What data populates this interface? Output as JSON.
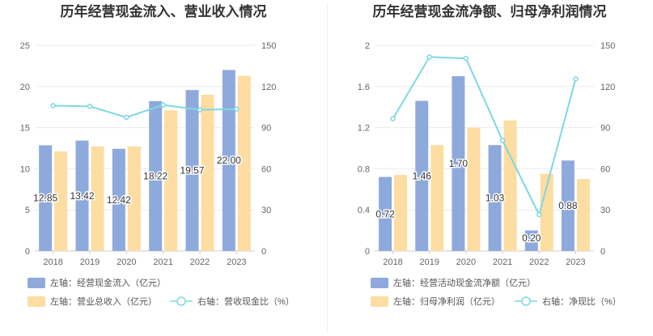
{
  "chart_data": [
    {
      "type": "bar",
      "title": "历年经营现金流入、营业收入情况",
      "categories": [
        "2018",
        "2019",
        "2020",
        "2021",
        "2022",
        "2023"
      ],
      "left_axis": {
        "ylim": [
          0,
          25
        ],
        "ticks": [
          "0",
          "5",
          "10",
          "15",
          "20",
          "25"
        ]
      },
      "right_axis": {
        "ylim": [
          0,
          150
        ],
        "ticks": [
          "0",
          "30",
          "60",
          "90",
          "120",
          "150"
        ]
      },
      "series": [
        {
          "name": "左轴：经营现金流入（亿元）",
          "kind": "bar",
          "axis": "left",
          "color": "#8eaadc",
          "values": [
            12.85,
            13.42,
            12.42,
            18.22,
            19.57,
            22.0
          ],
          "labels": [
            "12.85",
            "13.42",
            "12.42",
            "18.22",
            "19.57",
            "22.00"
          ]
        },
        {
          "name": "左轴：营业总收入（亿元）",
          "kind": "bar",
          "axis": "left",
          "color": "#fddda2",
          "values": [
            12.1,
            12.7,
            12.7,
            17.1,
            19.0,
            21.3
          ]
        },
        {
          "name": "右轴：营收现金比（%）",
          "kind": "line",
          "axis": "right",
          "color": "#7dd8e2",
          "values": [
            106,
            105.5,
            97.5,
            106.5,
            103,
            103.5
          ]
        }
      ]
    },
    {
      "type": "bar",
      "title": "历年经营现金流净额、归母净利润情况",
      "categories": [
        "2018",
        "2019",
        "2020",
        "2021",
        "2022",
        "2023"
      ],
      "left_axis": {
        "ylim": [
          0,
          2
        ],
        "ticks": [
          "0",
          "0.4",
          "0.8",
          "1.2",
          "1.6",
          "2"
        ]
      },
      "right_axis": {
        "ylim": [
          0,
          150
        ],
        "ticks": [
          "0",
          "30",
          "60",
          "90",
          "120",
          "150"
        ]
      },
      "series": [
        {
          "name": "左轴：经营活动现金流净额（亿元）",
          "kind": "bar",
          "axis": "left",
          "color": "#8eaadc",
          "values": [
            0.72,
            1.46,
            1.7,
            1.03,
            0.2,
            0.88
          ],
          "labels": [
            "0.72",
            "1.46",
            "1.70",
            "1.03",
            "0.20",
            "0.88"
          ]
        },
        {
          "name": "左轴：归母净利润（亿元）",
          "kind": "bar",
          "axis": "left",
          "color": "#fddda2",
          "values": [
            0.74,
            1.03,
            1.2,
            1.27,
            0.75,
            0.7
          ]
        },
        {
          "name": "右轴：净现比（%）",
          "kind": "line",
          "axis": "right",
          "color": "#7dd8e2",
          "values": [
            96.5,
            141.5,
            140.5,
            80.5,
            26.5,
            125.5
          ]
        }
      ]
    }
  ]
}
